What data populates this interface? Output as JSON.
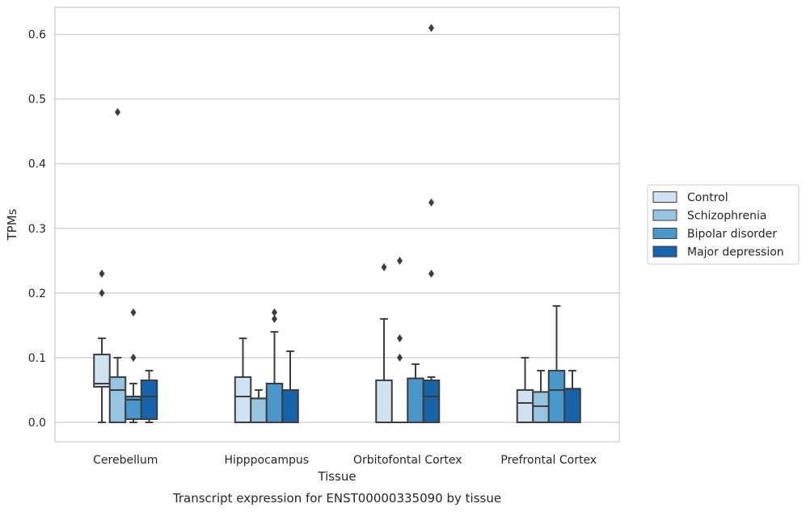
{
  "caption": "Transcript expression for ENST00000335090 by tissue",
  "chart_data": {
    "type": "box",
    "xlabel": "Tissue",
    "ylabel": "TPMs",
    "ylim": [
      -0.03,
      0.642
    ],
    "yticks": [
      "0.0",
      "0.1",
      "0.2",
      "0.3",
      "0.4",
      "0.5",
      "0.6"
    ],
    "grid": true,
    "legend_placement": "right",
    "categories": [
      "Cerebellum",
      "Hipppocampus",
      "Orbitofontal Cortex",
      "Prefrontal Cortex"
    ],
    "series": [
      {
        "name": "Control",
        "color": "#d0e1f2",
        "boxes": [
          {
            "whisker_low": 0.0,
            "q1": 0.055,
            "median": 0.06,
            "q3": 0.105,
            "whisker_high": 0.13,
            "outliers": [
              0.2,
              0.23
            ]
          },
          {
            "whisker_low": 0.0,
            "q1": 0.0,
            "median": 0.04,
            "q3": 0.07,
            "whisker_high": 0.13,
            "outliers": []
          },
          {
            "whisker_low": 0.0,
            "q1": 0.0,
            "median": 0.0,
            "q3": 0.065,
            "whisker_high": 0.16,
            "outliers": [
              0.24
            ]
          },
          {
            "whisker_low": 0.0,
            "q1": 0.0,
            "median": 0.03,
            "q3": 0.05,
            "whisker_high": 0.1,
            "outliers": []
          }
        ]
      },
      {
        "name": "Schizophrenia",
        "color": "#94c4df",
        "boxes": [
          {
            "whisker_low": 0.0,
            "q1": 0.0,
            "median": 0.05,
            "q3": 0.07,
            "whisker_high": 0.1,
            "outliers": [
              0.48
            ]
          },
          {
            "whisker_low": 0.0,
            "q1": 0.0,
            "median": 0.037,
            "q3": 0.037,
            "whisker_high": 0.05,
            "outliers": []
          },
          {
            "whisker_low": 0.0,
            "q1": 0.0,
            "median": 0.0,
            "q3": 0.0,
            "whisker_high": 0.0,
            "outliers": [
              0.1,
              0.13,
              0.25
            ]
          },
          {
            "whisker_low": 0.0,
            "q1": 0.0,
            "median": 0.025,
            "q3": 0.047,
            "whisker_high": 0.08,
            "outliers": []
          }
        ]
      },
      {
        "name": "Bipolar disorder",
        "color": "#4a98c9",
        "boxes": [
          {
            "whisker_low": 0.0,
            "q1": 0.005,
            "median": 0.035,
            "q3": 0.04,
            "whisker_high": 0.06,
            "outliers": [
              0.1,
              0.17
            ]
          },
          {
            "whisker_low": 0.0,
            "q1": 0.0,
            "median": 0.06,
            "q3": 0.06,
            "whisker_high": 0.14,
            "outliers": [
              0.16,
              0.17
            ]
          },
          {
            "whisker_low": 0.0,
            "q1": 0.0,
            "median": 0.068,
            "q3": 0.068,
            "whisker_high": 0.09,
            "outliers": []
          },
          {
            "whisker_low": 0.0,
            "q1": 0.0,
            "median": 0.05,
            "q3": 0.08,
            "whisker_high": 0.18,
            "outliers": []
          }
        ]
      },
      {
        "name": "Major depression",
        "color": "#1764ab",
        "boxes": [
          {
            "whisker_low": 0.0,
            "q1": 0.005,
            "median": 0.04,
            "q3": 0.065,
            "whisker_high": 0.08,
            "outliers": []
          },
          {
            "whisker_low": 0.0,
            "q1": 0.0,
            "median": 0.05,
            "q3": 0.05,
            "whisker_high": 0.11,
            "outliers": []
          },
          {
            "whisker_low": 0.0,
            "q1": 0.0,
            "median": 0.04,
            "q3": 0.065,
            "whisker_high": 0.07,
            "outliers": [
              0.23,
              0.34,
              0.61
            ]
          },
          {
            "whisker_low": 0.0,
            "q1": 0.0,
            "median": 0.052,
            "q3": 0.052,
            "whisker_high": 0.08,
            "outliers": []
          }
        ]
      }
    ]
  }
}
